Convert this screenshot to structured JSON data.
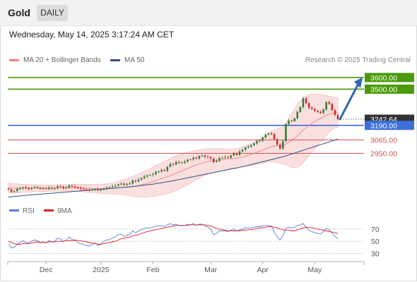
{
  "header": {
    "title": "Gold",
    "timeframe": "DAILY"
  },
  "datetime": "Wednesday, May 14, 2025 3:17:24 AM CET",
  "legend": {
    "ma20": "MA 20 + Bollinger Bands",
    "ma50": "MA 50",
    "credit": "Research © 2025 Trading Central"
  },
  "rsi_legend": {
    "rsi": "RSI",
    "ma9": "9MA"
  },
  "colors": {
    "resistance": "#4a9a0c",
    "pivot": "#3a6ed8",
    "support": "#d9534f",
    "candle_up": "#2e7d32",
    "candle_down": "#c62828",
    "bollinger": "#f6c4c4",
    "ma20": "#f08080",
    "ma50": "#33508a",
    "arrow": "#2f66b0",
    "rsi": "#5a7fd6",
    "rsi_ma": "#e02020"
  },
  "chart_data": [
    {
      "type": "candlestick",
      "title": "Gold",
      "timeframe": "DAILY",
      "x_tick_labels": [
        "Dec",
        "2025",
        "Feb",
        "Mar",
        "Apr",
        "May"
      ],
      "ylim": [
        2560,
        3660
      ],
      "levels": [
        {
          "label": "3600.00",
          "value": 3600.0,
          "kind": "resistance"
        },
        {
          "label": "3500.00",
          "value": 3500.0,
          "kind": "resistance"
        },
        {
          "label": "3242.64",
          "value": 3242.64,
          "kind": "last"
        },
        {
          "label": "3190.00",
          "value": 3190.0,
          "kind": "pivot"
        },
        {
          "label": "3065.00",
          "value": 3065.0,
          "kind": "support"
        },
        {
          "label": "2950.00",
          "value": 2950.0,
          "kind": "support"
        }
      ],
      "close": [
        2640,
        2620,
        2627,
        2643,
        2651,
        2658,
        2650,
        2645,
        2653,
        2660,
        2657,
        2646,
        2650,
        2645,
        2655,
        2648,
        2652,
        2667,
        2665,
        2650,
        2658,
        2675,
        2666,
        2660,
        2652,
        2645,
        2640,
        2637,
        2633,
        2640,
        2644,
        2634,
        2640,
        2650,
        2657,
        2660,
        2667,
        2673,
        2685,
        2690,
        2680,
        2688,
        2692,
        2716,
        2709,
        2725,
        2737,
        2751,
        2760,
        2765,
        2771,
        2791,
        2795,
        2808,
        2800,
        2835,
        2859,
        2855,
        2875,
        2871,
        2870,
        2880,
        2895,
        2897,
        2913,
        2905,
        2927,
        2930,
        2920,
        2916,
        2905,
        2875,
        2885,
        2910,
        2914,
        2918,
        2914,
        2932,
        2950,
        2938,
        2965,
        2980,
        3000,
        3008,
        3020,
        3035,
        3055,
        3059,
        3085,
        3110,
        3120,
        3115,
        3070,
        3025,
        2990,
        3055,
        3200,
        3230,
        3225,
        3250,
        3305,
        3345,
        3420,
        3380,
        3340,
        3330,
        3315,
        3305,
        3295,
        3325,
        3390,
        3375,
        3320,
        3280,
        3242.64
      ],
      "ma20": [
        2655,
        2652,
        2650,
        2649,
        2650,
        2651,
        2651,
        2651,
        2651,
        2652,
        2653,
        2652,
        2651,
        2651,
        2652,
        2652,
        2651,
        2652,
        2653,
        2653,
        2654,
        2655,
        2655,
        2656,
        2655,
        2654,
        2652,
        2650,
        2648,
        2648,
        2647,
        2646,
        2645,
        2645,
        2646,
        2647,
        2649,
        2651,
        2654,
        2657,
        2659,
        2661,
        2664,
        2667,
        2670,
        2674,
        2679,
        2685,
        2692,
        2699,
        2706,
        2714,
        2723,
        2732,
        2740,
        2750,
        2760,
        2770,
        2780,
        2790,
        2800,
        2810,
        2820,
        2830,
        2840,
        2850,
        2858,
        2866,
        2873,
        2879,
        2884,
        2887,
        2890,
        2893,
        2896,
        2899,
        2901,
        2904,
        2906,
        2908,
        2913,
        2918,
        2925,
        2932,
        2940,
        2949,
        2958,
        2967,
        2977,
        2988,
        2999,
        3008,
        3013,
        3015,
        3016,
        3020,
        3030,
        3045,
        3060,
        3078,
        3100,
        3122,
        3148,
        3170,
        3190,
        3208,
        3224,
        3238,
        3250,
        3262,
        3275,
        3286,
        3294,
        3298,
        3300
      ],
      "bollinger_upper": [
        2695,
        2693,
        2690,
        2688,
        2686,
        2685,
        2684,
        2683,
        2682,
        2681,
        2680,
        2680,
        2679,
        2679,
        2679,
        2679,
        2678,
        2679,
        2680,
        2681,
        2682,
        2684,
        2685,
        2686,
        2686,
        2686,
        2685,
        2684,
        2683,
        2683,
        2683,
        2683,
        2683,
        2685,
        2688,
        2692,
        2697,
        2703,
        2710,
        2718,
        2725,
        2733,
        2742,
        2752,
        2762,
        2773,
        2784,
        2796,
        2808,
        2820,
        2832,
        2845,
        2857,
        2869,
        2880,
        2893,
        2906,
        2917,
        2928,
        2937,
        2945,
        2952,
        2959,
        2965,
        2970,
        2975,
        2979,
        2983,
        2986,
        2988,
        2990,
        2990,
        2990,
        2990,
        2989,
        2988,
        2987,
        2986,
        2987,
        2990,
        2997,
        3005,
        3015,
        3025,
        3036,
        3048,
        3061,
        3074,
        3088,
        3104,
        3122,
        3140,
        3152,
        3160,
        3168,
        3180,
        3210,
        3250,
        3290,
        3330,
        3370,
        3400,
        3425,
        3442,
        3452,
        3458,
        3460,
        3458,
        3455,
        3450,
        3445,
        3440,
        3435,
        3430,
        3425
      ],
      "bollinger_lower": [
        2615,
        2611,
        2610,
        2610,
        2614,
        2617,
        2618,
        2619,
        2620,
        2623,
        2626,
        2624,
        2623,
        2623,
        2625,
        2625,
        2624,
        2625,
        2626,
        2625,
        2626,
        2626,
        2625,
        2626,
        2624,
        2622,
        2619,
        2616,
        2613,
        2613,
        2611,
        2609,
        2607,
        2605,
        2604,
        2602,
        2601,
        2599,
        2598,
        2596,
        2593,
        2589,
        2586,
        2582,
        2578,
        2575,
        2574,
        2574,
        2576,
        2578,
        2580,
        2583,
        2589,
        2595,
        2600,
        2607,
        2614,
        2623,
        2632,
        2643,
        2655,
        2668,
        2681,
        2695,
        2710,
        2725,
        2737,
        2749,
        2760,
        2770,
        2778,
        2784,
        2790,
        2796,
        2803,
        2810,
        2815,
        2822,
        2825,
        2826,
        2829,
        2831,
        2835,
        2839,
        2844,
        2850,
        2855,
        2860,
        2866,
        2872,
        2876,
        2876,
        2874,
        2870,
        2864,
        2860,
        2850,
        2840,
        2830,
        2826,
        2830,
        2844,
        2871,
        2898,
        2928,
        2958,
        2988,
        3018,
        3045,
        3074,
        3105,
        3132,
        3153,
        3166,
        3175
      ],
      "ma50": [
        2575,
        2578,
        2580,
        2583,
        2585,
        2588,
        2590,
        2592,
        2594,
        2596,
        2598,
        2600,
        2602,
        2604,
        2606,
        2608,
        2610,
        2612,
        2614,
        2616,
        2618,
        2620,
        2622,
        2624,
        2626,
        2628,
        2630,
        2632,
        2634,
        2636,
        2638,
        2640,
        2642,
        2644,
        2646,
        2648,
        2650,
        2652,
        2654,
        2656,
        2658,
        2660,
        2662,
        2665,
        2668,
        2671,
        2674,
        2677,
        2680,
        2683,
        2686,
        2690,
        2694,
        2698,
        2702,
        2706,
        2710,
        2715,
        2720,
        2725,
        2730,
        2735,
        2740,
        2745,
        2750,
        2755,
        2760,
        2765,
        2770,
        2775,
        2780,
        2785,
        2790,
        2795,
        2800,
        2805,
        2810,
        2815,
        2820,
        2825,
        2830,
        2836,
        2842,
        2848,
        2854,
        2860,
        2866,
        2872,
        2878,
        2884,
        2890,
        2896,
        2902,
        2908,
        2914,
        2920,
        2928,
        2936,
        2944,
        2952,
        2960,
        2968,
        2976,
        2984,
        2992,
        3000,
        3008,
        3016,
        3024,
        3032,
        3040,
        3048,
        3056,
        3064,
        3072
      ],
      "forecast_arrow": {
        "from": 3242.64,
        "to": 3600.0
      }
    },
    {
      "type": "line",
      "title": "RSI",
      "ylim": [
        20,
        85
      ],
      "y_tick_labels": [
        "70",
        "50",
        "30"
      ],
      "series": [
        {
          "name": "RSI",
          "values": [
            46,
            39,
            40,
            45,
            48,
            51,
            48,
            47,
            50,
            52,
            51,
            47,
            49,
            47,
            51,
            49,
            50,
            55,
            54,
            49,
            52,
            57,
            53,
            51,
            48,
            46,
            44,
            43,
            42,
            45,
            47,
            43,
            46,
            50,
            52,
            53,
            55,
            57,
            61,
            62,
            58,
            60,
            61,
            67,
            64,
            67,
            69,
            71,
            72,
            72,
            73,
            75,
            75,
            76,
            74,
            77,
            79,
            77,
            78,
            76,
            75,
            76,
            78,
            77,
            79,
            76,
            78,
            78,
            75,
            73,
            70,
            61,
            63,
            67,
            67,
            67,
            66,
            68,
            70,
            67,
            69,
            70,
            72,
            72,
            72,
            73,
            74,
            74,
            75,
            76,
            76,
            75,
            65,
            57,
            52,
            59,
            71,
            73,
            72,
            73,
            76,
            77,
            79,
            73,
            68,
            66,
            64,
            63,
            62,
            66,
            71,
            69,
            63,
            58,
            54
          ]
        },
        {
          "name": "9MA",
          "values": [
            50,
            48,
            46,
            45,
            45,
            46,
            46,
            46,
            47,
            48,
            49,
            48,
            48,
            48,
            49,
            49,
            49,
            50,
            50,
            50,
            51,
            51,
            51,
            52,
            51,
            51,
            50,
            49,
            48,
            47,
            46,
            45,
            45,
            46,
            47,
            48,
            49,
            50,
            52,
            54,
            55,
            56,
            57,
            59,
            60,
            61,
            63,
            64,
            66,
            67,
            68,
            69,
            70,
            71,
            72,
            73,
            74,
            75,
            76,
            76,
            76,
            76,
            76,
            77,
            77,
            77,
            77,
            77,
            77,
            76,
            75,
            73,
            71,
            70,
            69,
            68,
            67,
            67,
            67,
            67,
            67,
            68,
            68,
            69,
            69,
            70,
            71,
            72,
            72,
            73,
            74,
            74,
            73,
            72,
            70,
            69,
            68,
            68,
            67,
            67,
            69,
            70,
            72,
            73,
            73,
            72,
            71,
            70,
            69,
            68,
            67,
            66,
            65,
            64,
            63
          ]
        }
      ]
    }
  ]
}
